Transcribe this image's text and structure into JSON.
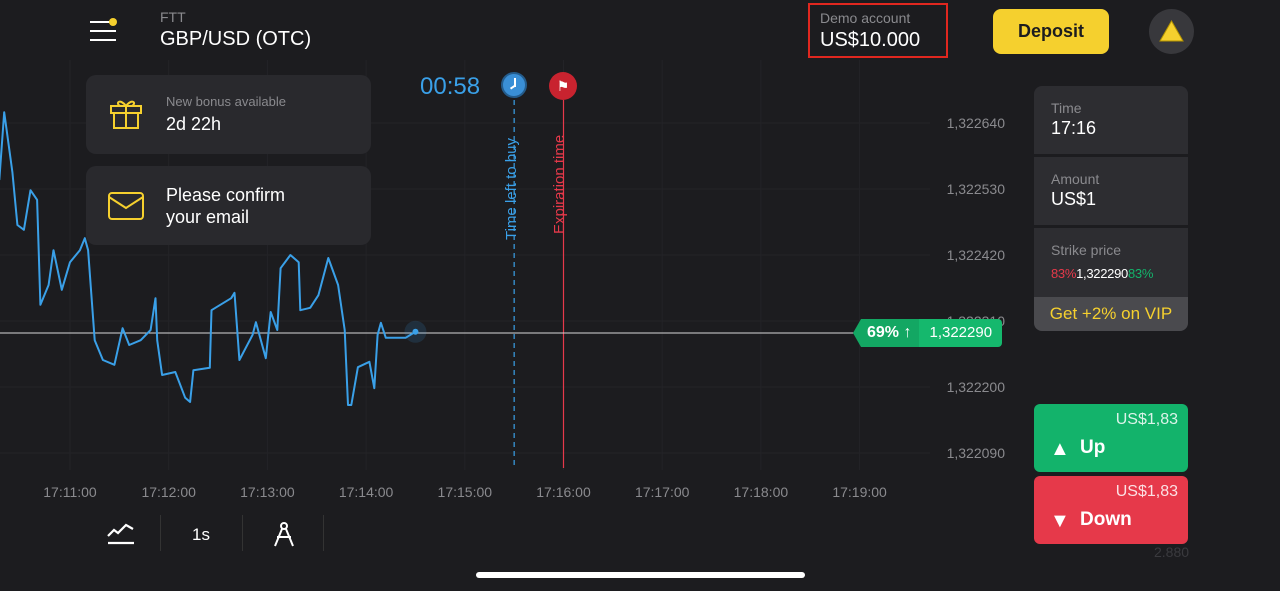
{
  "header": {
    "asset_type": "FTT",
    "asset": "GBP/USD (OTC)",
    "account_label": "Demo account",
    "balance": "US$10.000",
    "deposit_label": "Deposit",
    "menu_icon": "hamburger-menu-icon",
    "avatar_icon": "triangle-avatar-icon",
    "accent": "#f5d02e"
  },
  "notifications": [
    {
      "icon": "gift-icon",
      "title": "New bonus available",
      "value": "2d 22h"
    },
    {
      "icon": "envelope-icon",
      "line1": "Please confirm",
      "line2": "your email"
    }
  ],
  "timer": {
    "countdown": "00:58",
    "time_left_label": "Time left to buy",
    "expiration_label": "Expiration time"
  },
  "current": {
    "payout": "69%",
    "arrow": "↑",
    "price": "1,322290"
  },
  "panel": {
    "time_label": "Time",
    "time": "17:16",
    "amount_label": "Amount",
    "amount": "US$1",
    "strike_label": "Strike price",
    "strike_left": "83%",
    "strike_price": "1,322290",
    "strike_right": "83%",
    "vip": "Get +2% on VIP"
  },
  "trade": {
    "up_amount": "US$1,83",
    "up_label": "Up",
    "down_amount": "US$1,83",
    "down_label": "Down",
    "up_color": "#13b36b",
    "down_color": "#e6394a"
  },
  "footer_value": "2.880",
  "toolbar": {
    "chart_type_icon": "line-chart-icon",
    "interval": "1s",
    "drawing_icon": "compass-icon"
  },
  "chart_data": {
    "type": "line",
    "x_ticks": [
      "17:11:00",
      "17:12:00",
      "17:13:00",
      "17:14:00",
      "17:15:00",
      "17:16:00",
      "17:17:00",
      "17:18:00",
      "17:19:00"
    ],
    "y_ticks": [
      "1,322640",
      "1,322530",
      "1,322420",
      "1,322310",
      "1,322200",
      "1,322090"
    ],
    "current_price": 1322290,
    "time_left_to_buy": "17:15:30",
    "expiration": "17:16:00",
    "line_color": "#3aa0e8",
    "series": [
      [
        "17:10:17",
        1322545
      ],
      [
        "17:10:20",
        1322658
      ],
      [
        "17:10:25",
        1322558
      ],
      [
        "17:10:28",
        1322470
      ],
      [
        "17:10:32",
        1322462
      ],
      [
        "17:10:36",
        1322528
      ],
      [
        "17:10:40",
        1322512
      ],
      [
        "17:10:42",
        1322337
      ],
      [
        "17:10:47",
        1322370
      ],
      [
        "17:10:50",
        1322428
      ],
      [
        "17:10:55",
        1322362
      ],
      [
        "17:11:00",
        1322408
      ],
      [
        "17:11:06",
        1322428
      ],
      [
        "17:11:09",
        1322448
      ],
      [
        "17:11:11",
        1322428
      ],
      [
        "17:11:15",
        1322278
      ],
      [
        "17:11:20",
        1322245
      ],
      [
        "17:11:27",
        1322237
      ],
      [
        "17:11:32",
        1322298
      ],
      [
        "17:11:36",
        1322270
      ],
      [
        "17:11:43",
        1322278
      ],
      [
        "17:11:49",
        1322295
      ],
      [
        "17:11:52",
        1322348
      ],
      [
        "17:11:53",
        1322278
      ],
      [
        "17:11:56",
        1322220
      ],
      [
        "17:12:04",
        1322225
      ],
      [
        "17:12:10",
        1322182
      ],
      [
        "17:12:13",
        1322175
      ],
      [
        "17:12:15",
        1322228
      ],
      [
        "17:12:25",
        1322232
      ],
      [
        "17:12:26",
        1322328
      ],
      [
        "17:12:38",
        1322348
      ],
      [
        "17:12:40",
        1322357
      ],
      [
        "17:12:43",
        1322245
      ],
      [
        "17:12:51",
        1322287
      ],
      [
        "17:12:53",
        1322308
      ],
      [
        "17:12:59",
        1322248
      ],
      [
        "17:13:02",
        1322325
      ],
      [
        "17:13:06",
        1322295
      ],
      [
        "17:13:08",
        1322398
      ],
      [
        "17:13:14",
        1322420
      ],
      [
        "17:13:19",
        1322408
      ],
      [
        "17:13:20",
        1322328
      ],
      [
        "17:13:26",
        1322332
      ],
      [
        "17:13:31",
        1322353
      ],
      [
        "17:13:37",
        1322415
      ],
      [
        "17:13:43",
        1322370
      ],
      [
        "17:13:47",
        1322295
      ],
      [
        "17:13:49",
        1322170
      ],
      [
        "17:13:51",
        1322170
      ],
      [
        "17:13:55",
        1322233
      ],
      [
        "17:14:02",
        1322242
      ],
      [
        "17:14:05",
        1322198
      ],
      [
        "17:14:07",
        1322287
      ],
      [
        "17:14:09",
        1322307
      ],
      [
        "17:14:12",
        1322282
      ],
      [
        "17:14:24",
        1322282
      ],
      [
        "17:14:30",
        1322292
      ]
    ]
  }
}
